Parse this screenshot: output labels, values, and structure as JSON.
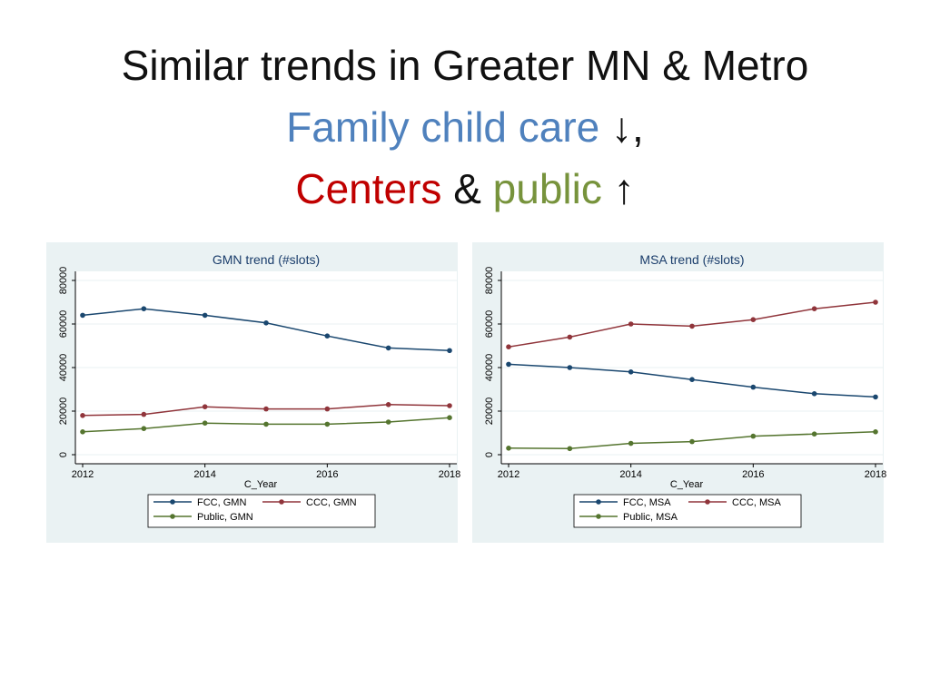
{
  "slide": {
    "title_line1": "Similar trends in Greater MN & Metro",
    "line2": {
      "fcc_text": "Family child care",
      "fcc_arrow": "↓",
      "comma": ","
    },
    "line3": {
      "centers_text": "Centers",
      "amp": "&",
      "public_text": "public",
      "up_arrow": "↑"
    }
  },
  "colors": {
    "fcc": "#1a476f",
    "ccc": "#90353b",
    "public": "#55752f",
    "title_fcc": "#4f81bd",
    "title_centers": "#c00000",
    "title_public": "#77933c",
    "panel_bg": "#eaf2f3"
  },
  "chart_data": [
    {
      "type": "line",
      "title": "GMN trend (#slots)",
      "xlabel": "C_Year",
      "ylabel": "",
      "x": [
        2012,
        2013,
        2014,
        2015,
        2016,
        2017,
        2018
      ],
      "xticks": [
        2012,
        2014,
        2016,
        2018
      ],
      "yticks": [
        0,
        20000,
        40000,
        60000,
        80000
      ],
      "xlim": [
        2012,
        2018
      ],
      "ylim": [
        0,
        80000
      ],
      "grid": true,
      "legend_position": "bottom",
      "series": [
        {
          "name": "FCC, GMN",
          "key": "fcc",
          "values": [
            64000,
            67000,
            64000,
            60500,
            54500,
            49000,
            47800
          ]
        },
        {
          "name": "CCC, GMN",
          "key": "ccc",
          "values": [
            18000,
            18500,
            22000,
            21000,
            21000,
            23000,
            22500
          ]
        },
        {
          "name": "Public, GMN",
          "key": "public",
          "values": [
            10500,
            12000,
            14500,
            14000,
            14000,
            15000,
            17000
          ]
        }
      ]
    },
    {
      "type": "line",
      "title": "MSA trend (#slots)",
      "xlabel": "C_Year",
      "ylabel": "",
      "x": [
        2012,
        2013,
        2014,
        2015,
        2016,
        2017,
        2018
      ],
      "xticks": [
        2012,
        2014,
        2016,
        2018
      ],
      "yticks": [
        0,
        20000,
        40000,
        60000,
        80000
      ],
      "xlim": [
        2012,
        2018
      ],
      "ylim": [
        0,
        80000
      ],
      "grid": true,
      "legend_position": "bottom",
      "series": [
        {
          "name": "FCC, MSA",
          "key": "fcc",
          "values": [
            41500,
            40000,
            38000,
            34500,
            31000,
            28000,
            26500
          ]
        },
        {
          "name": "CCC, MSA",
          "key": "ccc",
          "values": [
            49500,
            54000,
            60000,
            59000,
            62000,
            67000,
            70000
          ]
        },
        {
          "name": "Public, MSA",
          "key": "public",
          "values": [
            3000,
            2800,
            5200,
            6000,
            8500,
            9500,
            10500
          ]
        }
      ]
    }
  ]
}
